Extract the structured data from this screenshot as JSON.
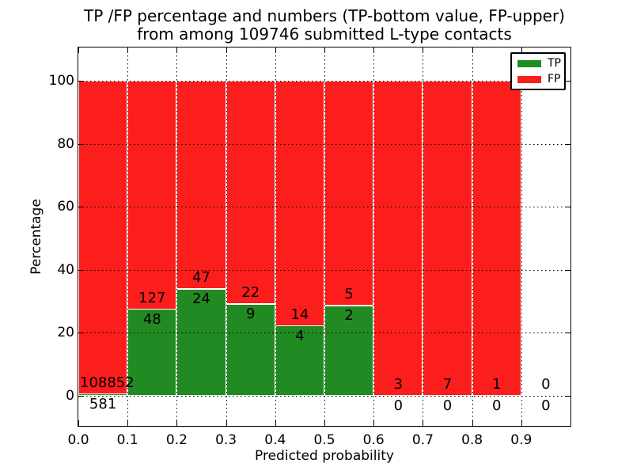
{
  "title": {
    "line1": "TP /FP percentage and numbers (TP-bottom value, FP-upper)",
    "line2": "from among 109746 submitted L-type contacts"
  },
  "axes": {
    "xlabel": "Predicted probability",
    "ylabel": "Percentage"
  },
  "legend": {
    "items": [
      {
        "label": "TP",
        "color": "#228a22"
      },
      {
        "label": "FP",
        "color": "#fc1d1d"
      }
    ]
  },
  "chart_data": {
    "type": "bar",
    "stacked": true,
    "title": "TP /FP percentage and numbers (TP-bottom value, FP-upper) from among 109746 submitted L-type contacts",
    "xlabel": "Predicted probability",
    "ylabel": "Percentage",
    "total_contacts": 109746,
    "bin_width": 0.1,
    "bins": [
      {
        "x_start": 0.0,
        "x_end": 0.1,
        "tp": 581,
        "fp": 108852,
        "tp_percent": 0.53
      },
      {
        "x_start": 0.1,
        "x_end": 0.2,
        "tp": 48,
        "fp": 127,
        "tp_percent": 27.43
      },
      {
        "x_start": 0.2,
        "x_end": 0.3,
        "tp": 24,
        "fp": 47,
        "tp_percent": 33.8
      },
      {
        "x_start": 0.3,
        "x_end": 0.4,
        "tp": 9,
        "fp": 22,
        "tp_percent": 29.03
      },
      {
        "x_start": 0.4,
        "x_end": 0.5,
        "tp": 4,
        "fp": 14,
        "tp_percent": 22.22
      },
      {
        "x_start": 0.5,
        "x_end": 0.6,
        "tp": 2,
        "fp": 5,
        "tp_percent": 28.57
      },
      {
        "x_start": 0.6,
        "x_end": 0.7,
        "tp": 0,
        "fp": 3,
        "tp_percent": 0
      },
      {
        "x_start": 0.7,
        "x_end": 0.8,
        "tp": 0,
        "fp": 7,
        "tp_percent": 0
      },
      {
        "x_start": 0.8,
        "x_end": 0.9,
        "tp": 0,
        "fp": 1,
        "tp_percent": 0
      },
      {
        "x_start": 0.9,
        "x_end": 1.0,
        "tp": 0,
        "fp": 0,
        "tp_percent": null
      }
    ],
    "series": [
      {
        "name": "TP",
        "color": "#228a22",
        "counts": [
          581,
          48,
          24,
          9,
          4,
          2,
          0,
          0,
          0,
          0
        ]
      },
      {
        "name": "FP",
        "color": "#fc1d1d",
        "counts": [
          108852,
          127,
          47,
          22,
          14,
          5,
          3,
          7,
          1,
          0
        ]
      }
    ],
    "xtick_labels": [
      "0.0",
      "0.1",
      "0.2",
      "0.3",
      "0.4",
      "0.5",
      "0.6",
      "0.7",
      "0.8",
      "0.9"
    ],
    "ytick_values": [
      0,
      20,
      40,
      60,
      80,
      100
    ],
    "ytick_labels": [
      "0",
      "20",
      "40",
      "60",
      "80",
      "100"
    ],
    "xlim": [
      0.0,
      1.003
    ],
    "ylim": [
      -10,
      110.5
    ],
    "grid": "dotted, both axes, drawn over bars",
    "legend_position": "upper right",
    "colors": {
      "tp": "#228a22",
      "fp": "#fc1d1d",
      "grid": "#000000",
      "background": "#ffffff"
    }
  }
}
